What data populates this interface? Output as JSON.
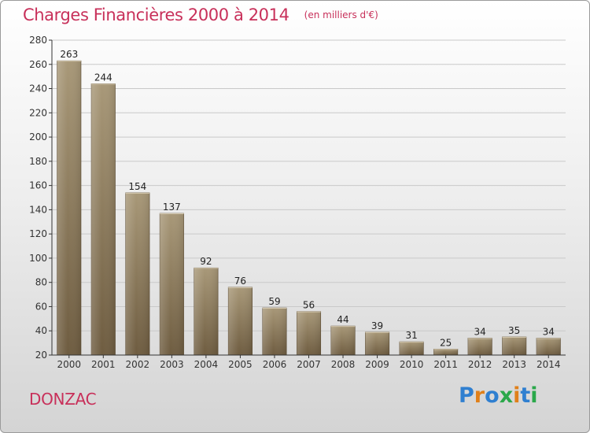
{
  "header": {
    "title": "Charges Financières 2000 à 2014",
    "subtitle": "(en milliers d'€)"
  },
  "footer": {
    "region": "DONZAC",
    "logo_text": "Proxiti",
    "logo_letters": [
      {
        "ch": "P",
        "color": "#2f7fd0"
      },
      {
        "ch": "r",
        "color": "#e0801a"
      },
      {
        "ch": "o",
        "color": "#2f7fd0"
      },
      {
        "ch": "x",
        "color": "#2aa84a"
      },
      {
        "ch": "i",
        "color": "#e0801a"
      },
      {
        "ch": "t",
        "color": "#2f7fd0"
      },
      {
        "ch": "i",
        "color": "#2aa84a"
      }
    ]
  },
  "colors": {
    "title": "#c8305a",
    "bar_light": "#a89878",
    "bar_dark": "#6e5c40",
    "axis": "#333333"
  },
  "chart_data": {
    "type": "bar",
    "title": "Charges Financières 2000 à 2014",
    "subtitle": "(en milliers d'€)",
    "xlabel": "",
    "ylabel": "",
    "categories": [
      "2000",
      "2001",
      "2002",
      "2003",
      "2004",
      "2005",
      "2006",
      "2007",
      "2008",
      "2009",
      "2010",
      "2011",
      "2012",
      "2013",
      "2014"
    ],
    "values": [
      263,
      244,
      154,
      137,
      92,
      76,
      59,
      56,
      44,
      39,
      31,
      25,
      34,
      35,
      34
    ],
    "ylim": [
      20,
      280
    ],
    "yticks": [
      20,
      40,
      60,
      80,
      100,
      120,
      140,
      160,
      180,
      200,
      220,
      240,
      260,
      280
    ],
    "grid": true,
    "legend": "none"
  }
}
